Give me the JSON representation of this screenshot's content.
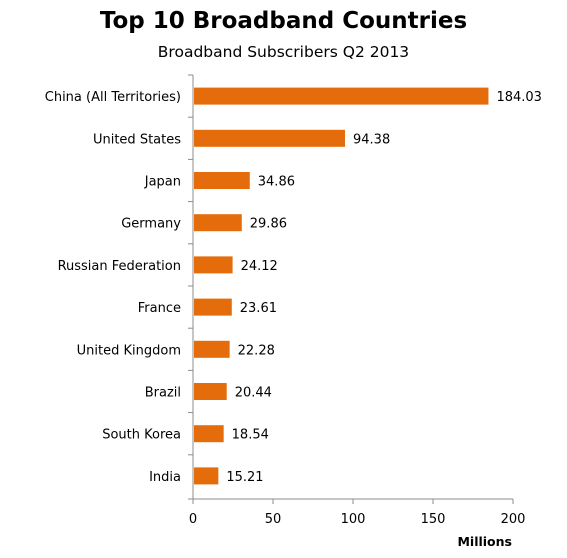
{
  "chart_data": {
    "type": "bar",
    "orientation": "horizontal",
    "title": "Top 10 Broadband Countries",
    "subtitle": "Broadband Subscribers Q2 2013",
    "xlabel": "Millions",
    "ylabel": "",
    "categories": [
      "China (All Territories)",
      "United States",
      "Japan",
      "Germany",
      "Russian Federation",
      "France",
      "United Kingdom",
      "Brazil",
      "South Korea",
      "India"
    ],
    "values": [
      184.03,
      94.38,
      34.86,
      29.86,
      24.12,
      23.61,
      22.28,
      20.44,
      18.54,
      15.21
    ],
    "value_labels": [
      "184.03",
      "94.38",
      "34.86",
      "29.86",
      "24.12",
      "23.61",
      "22.28",
      "20.44",
      "18.54",
      "15.21"
    ],
    "xlim": [
      0,
      200
    ],
    "xticks": [
      "0",
      "50",
      "100",
      "150",
      "200"
    ],
    "grid": false,
    "legend": "none",
    "bar_color": "#E46C0A"
  }
}
